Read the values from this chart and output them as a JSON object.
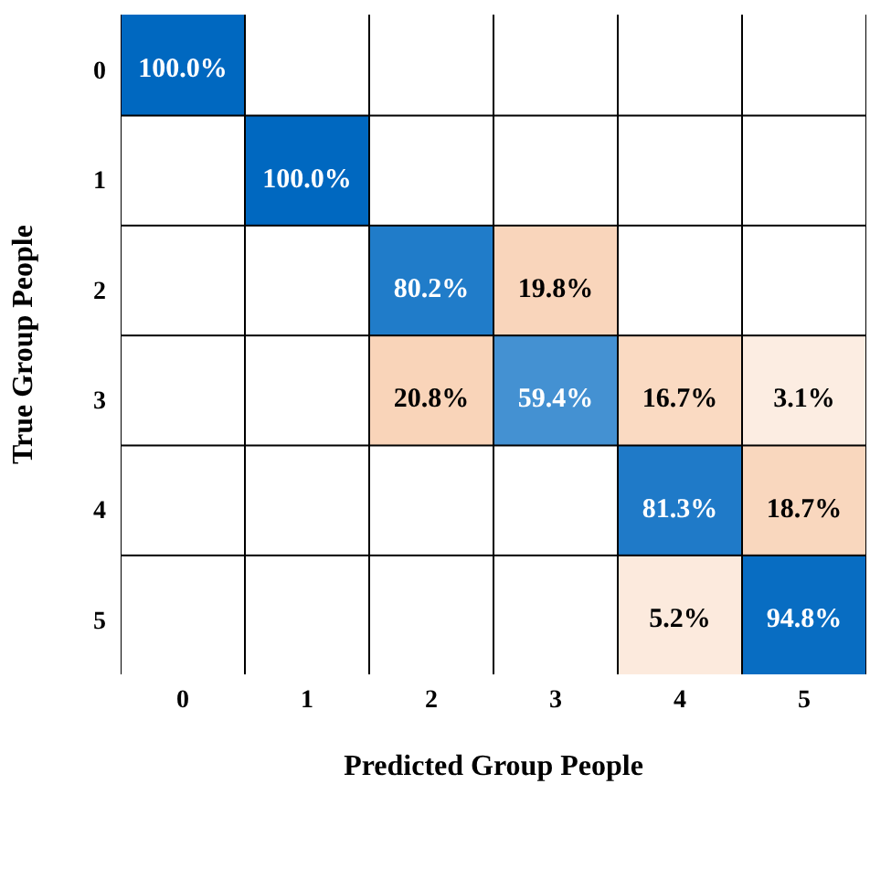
{
  "chart_data": {
    "type": "heatmap",
    "xlabel": "Predicted Group People",
    "ylabel": "True Group People",
    "categories": [
      "0",
      "1",
      "2",
      "3",
      "4",
      "5"
    ],
    "y_categories": [
      "0",
      "1",
      "2",
      "3",
      "4",
      "5"
    ],
    "cells": [
      [
        100.0,
        null,
        null,
        null,
        null,
        null
      ],
      [
        null,
        100.0,
        null,
        null,
        null,
        null
      ],
      [
        null,
        null,
        80.2,
        19.8,
        null,
        null
      ],
      [
        null,
        null,
        20.8,
        59.4,
        16.7,
        3.1
      ],
      [
        null,
        null,
        null,
        null,
        81.3,
        18.7
      ],
      [
        null,
        null,
        null,
        null,
        5.2,
        94.8
      ]
    ],
    "cell_labels": [
      [
        "100.0%",
        null,
        null,
        null,
        null,
        null
      ],
      [
        null,
        "100.0%",
        null,
        null,
        null,
        null
      ],
      [
        null,
        null,
        "80.2%",
        "19.8%",
        null,
        null
      ],
      [
        null,
        null,
        "20.8%",
        "59.4%",
        "16.7%",
        "3.1%"
      ],
      [
        null,
        null,
        null,
        null,
        "81.3%",
        "18.7%"
      ],
      [
        null,
        null,
        null,
        null,
        "5.2%",
        "94.8%"
      ]
    ]
  }
}
